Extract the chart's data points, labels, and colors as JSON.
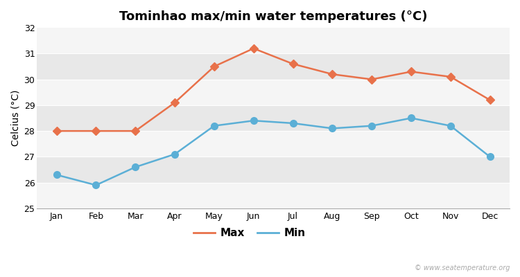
{
  "title": "Tominhao max/min water temperatures (°C)",
  "ylabel": "Celcius (°C)",
  "months": [
    "Jan",
    "Feb",
    "Mar",
    "Apr",
    "May",
    "Jun",
    "Jul",
    "Aug",
    "Sep",
    "Oct",
    "Nov",
    "Dec"
  ],
  "max_values": [
    28.0,
    28.0,
    28.0,
    29.1,
    30.5,
    31.2,
    30.6,
    30.2,
    30.0,
    30.3,
    30.1,
    29.2
  ],
  "min_values": [
    26.3,
    25.9,
    26.6,
    27.1,
    28.2,
    28.4,
    28.3,
    28.1,
    28.2,
    28.5,
    28.2,
    27.0
  ],
  "max_color": "#E8714A",
  "min_color": "#5BAFD6",
  "bg_color": "#ffffff",
  "band_light": "#f5f5f5",
  "band_dark": "#e8e8e8",
  "ylim": [
    25,
    32
  ],
  "yticks": [
    25,
    26,
    27,
    28,
    29,
    30,
    31,
    32
  ],
  "watermark": "© www.seatemperature.org",
  "title_fontsize": 13,
  "label_fontsize": 10,
  "tick_fontsize": 9,
  "line_width": 1.8,
  "marker_style_max": "D",
  "marker_style_min": "o",
  "marker_size_max": 6,
  "marker_size_min": 7,
  "legend_labels": [
    "Max",
    "Min"
  ]
}
